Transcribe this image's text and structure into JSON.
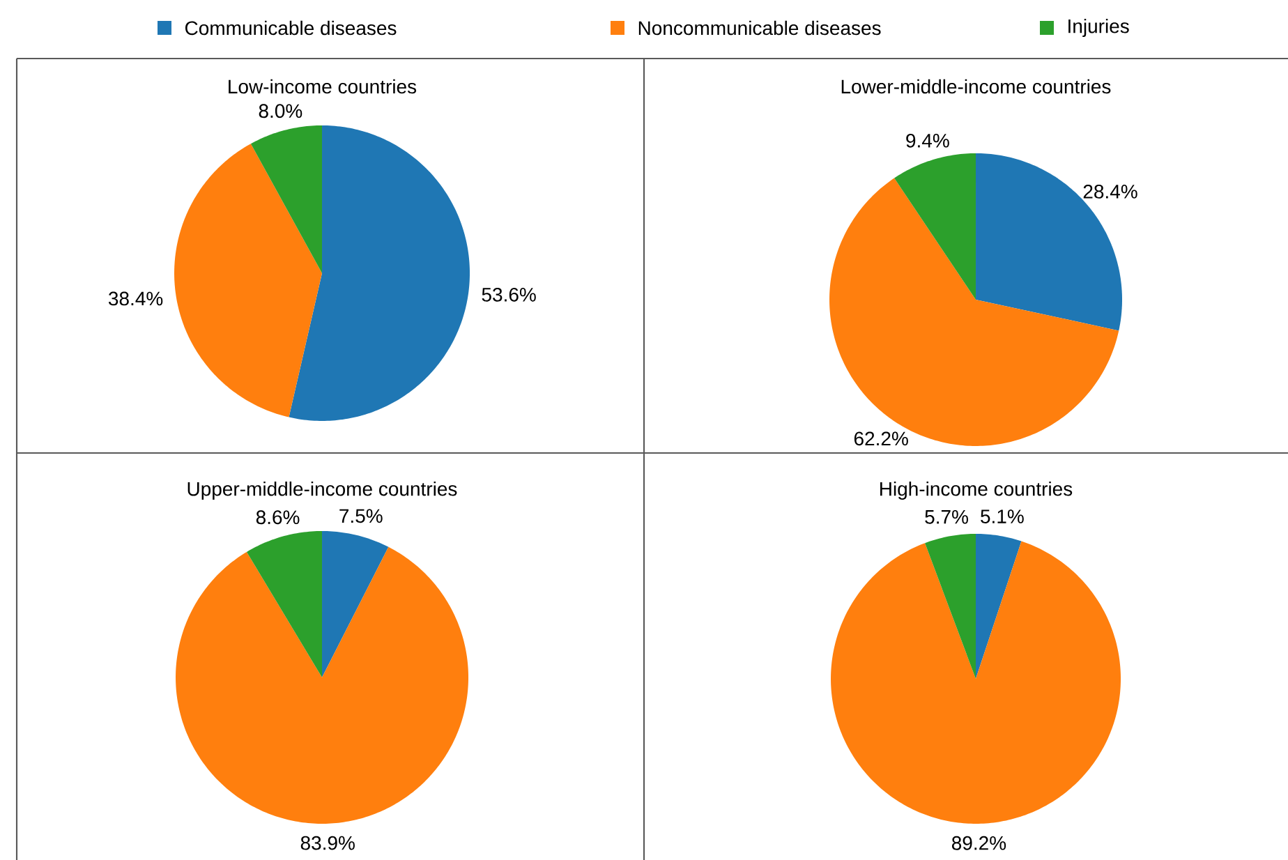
{
  "chart_data": [
    {
      "type": "pie",
      "title": "Low-income countries",
      "legend": "top",
      "categories": [
        "Communicable diseases",
        "Noncommunicable diseases",
        "Injuries"
      ],
      "values": [
        53.6,
        38.4,
        8.0
      ],
      "colors": [
        "#1f77b4",
        "#ff7f0e",
        "#2ca02c"
      ],
      "value_labels": [
        "53.6%",
        "38.4%",
        "8.0%"
      ]
    },
    {
      "type": "pie",
      "title": "Lower-middle-income countries",
      "categories": [
        null,
        null,
        null
      ],
      "values": [
        28.4,
        62.2,
        9.4
      ],
      "colors": [
        "#1f77b4",
        "#ff7f0e",
        "#2ca02c"
      ],
      "value_labels": [
        "28.4%",
        "62.2%",
        "9.4%"
      ]
    },
    {
      "type": "pie",
      "title": "Upper-middle-income countries",
      "categories": [
        null,
        null,
        null
      ],
      "values": [
        7.5,
        83.9,
        8.6
      ],
      "colors": [
        "#1f77b4",
        "#ff7f0e",
        "#2ca02c"
      ],
      "value_labels": [
        "7.5%",
        "83.9%",
        "8.6%"
      ]
    },
    {
      "type": "pie",
      "title": "High-income countries",
      "categories": [
        null,
        null,
        null
      ],
      "values": [
        5.1,
        89.2,
        5.7
      ],
      "colors": [
        "#1f77b4",
        "#ff7f0e",
        "#2ca02c"
      ],
      "value_labels": [
        "5.1%",
        "89.2%",
        "5.7%"
      ]
    }
  ]
}
